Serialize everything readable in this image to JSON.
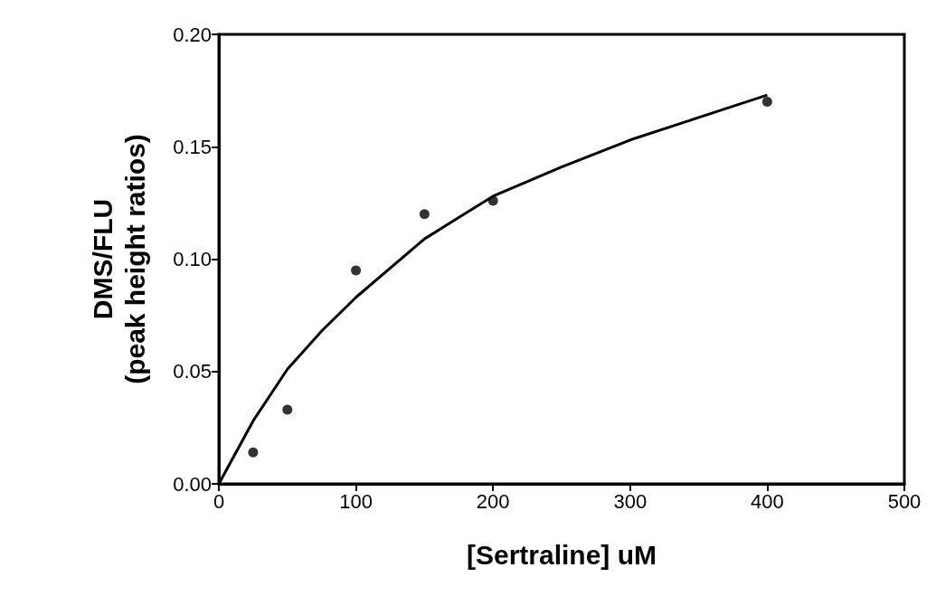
{
  "chart_data": {
    "type": "scatter",
    "xlabel": "[Sertraline] uM",
    "ylabel": "DMS/FLU\n(peak height ratios)",
    "xlim": [
      0,
      500
    ],
    "xticks": [
      0,
      100,
      200,
      300,
      400,
      500
    ],
    "ylim": [
      0,
      0.2
    ],
    "yticks": [
      {
        "value": 0,
        "label": "0.00"
      },
      {
        "value": 0.05,
        "label": "0.05"
      },
      {
        "value": 0.1,
        "label": "0.10"
      },
      {
        "value": 0.15,
        "label": "0.15"
      },
      {
        "value": 0.2,
        "label": "0.20"
      }
    ],
    "grid": false,
    "series": [
      {
        "color": "#000000",
        "marker": "circle",
        "x": [
          25,
          50,
          100,
          150,
          200,
          400
        ],
        "values": [
          0.014,
          0.033,
          0.095,
          0.12,
          0.126,
          0.17
        ]
      },
      {
        "type": "line",
        "color": "#000000",
        "marker": "none",
        "line_style": "solid",
        "x": [
          0,
          25,
          50,
          75,
          100,
          150,
          200,
          250,
          300,
          350,
          400
        ],
        "values": [
          0,
          0.028,
          0.051,
          0.068,
          0.083,
          0.109,
          0.128,
          0.141,
          0.153,
          0.163,
          0.173
        ]
      }
    ]
  }
}
